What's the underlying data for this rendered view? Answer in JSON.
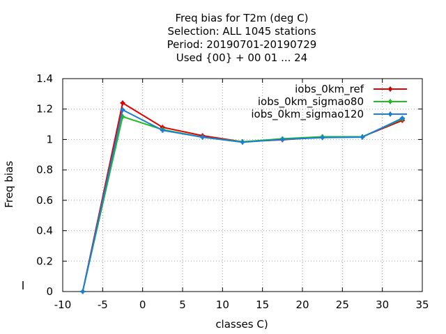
{
  "chart_data": {
    "type": "line",
    "title_lines": [
      "Freq bias  for T2m (deg C)",
      "Selection: ALL   1045 stations",
      "Period: 20190701-20190729",
      "Used {00} + 00 01 ... 24"
    ],
    "xlabel": "classes C)",
    "ylabel": "Freq bias",
    "xlim": [
      -10,
      35
    ],
    "ylim": [
      0,
      1.4
    ],
    "x_ticks": [
      "-10",
      "-5",
      "0",
      "5",
      "10",
      "15",
      "20",
      "25",
      "30",
      "35"
    ],
    "y_ticks": [
      "0",
      "0.2",
      "0.4",
      "0.6",
      "0.8",
      "1",
      "1.2",
      "1.4"
    ],
    "grid": true,
    "legend_position": "top-right",
    "x": [
      -7.5,
      -2.5,
      2.5,
      7.5,
      12.5,
      17.5,
      22.5,
      27.5,
      32.5
    ],
    "series": [
      {
        "name": "iobs_0km_ref",
        "color": "#e00000",
        "values": [
          0,
          1.24,
          1.08,
          1.025,
          0.985,
          0.998,
          1.015,
          1.018,
          1.125
        ]
      },
      {
        "name": "iobs_0km_sigmao80",
        "color": "#1fbd1f",
        "values": [
          0,
          1.15,
          1.065,
          1.015,
          0.985,
          1.005,
          1.018,
          1.018,
          1.135
        ]
      },
      {
        "name": "iobs_0km_sigmao120",
        "color": "#1a7fd6",
        "values": [
          0,
          1.195,
          1.06,
          1.015,
          0.982,
          1.0,
          1.012,
          1.015,
          1.14
        ]
      }
    ]
  }
}
